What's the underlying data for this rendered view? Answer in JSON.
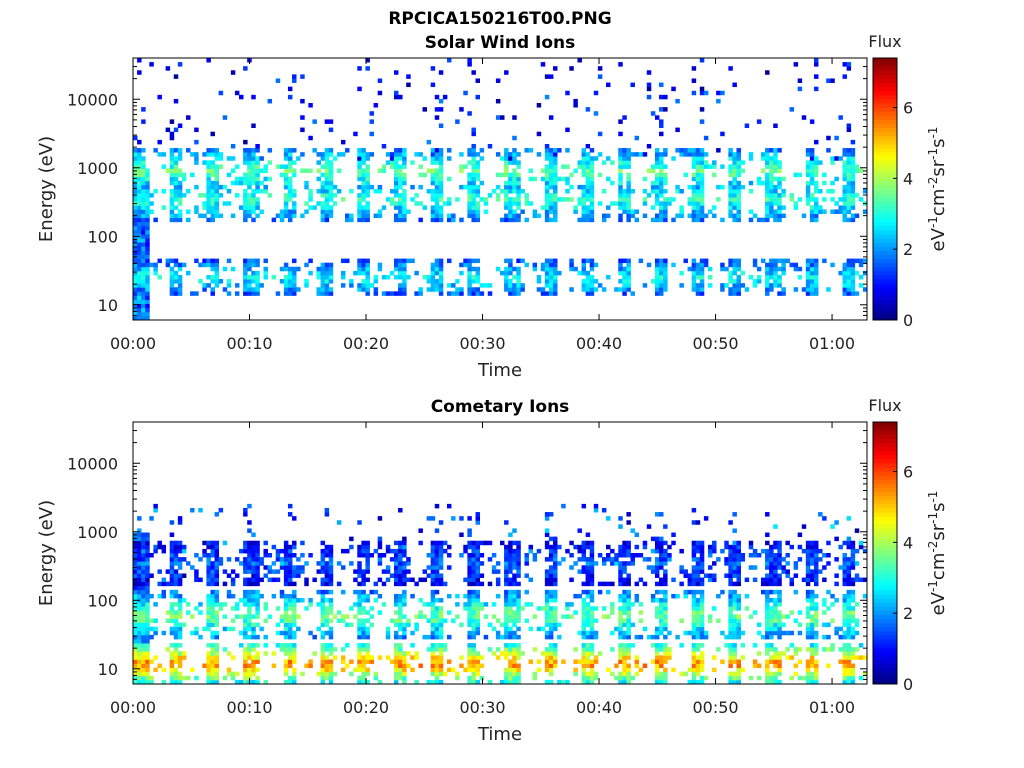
{
  "figure_title": "RPCICA150216T00.PNG",
  "chart_data": [
    {
      "type": "heatmap",
      "title": "Solar Wind Ions",
      "xlabel": "Time",
      "ylabel": "Energy (eV)",
      "y_scale": "log",
      "ylim": [
        6,
        40000
      ],
      "xlim_minutes": [
        0,
        63
      ],
      "x_ticks": [
        "00:00",
        "00:10",
        "00:20",
        "00:30",
        "00:40",
        "00:50",
        "01:00"
      ],
      "y_ticks": [
        "10",
        "100",
        "1000",
        "10000"
      ],
      "colorbar": {
        "title": "Flux",
        "label": "eV-1cm-2sr-1s-1",
        "range": [
          0,
          7.4
        ],
        "ticks": [
          "0",
          "2",
          "4",
          "6"
        ],
        "colormap": "jet"
      },
      "band_centers_eV": [
        25,
        350,
        900
      ],
      "band_levels": [
        2.8,
        3.1,
        3.4
      ],
      "sweep_period_minutes": 3.2
    },
    {
      "type": "heatmap",
      "title": "Cometary Ions",
      "xlabel": "Time",
      "ylabel": "Energy (eV)",
      "y_scale": "log",
      "ylim": [
        6,
        40000
      ],
      "xlim_minutes": [
        0,
        63
      ],
      "x_ticks": [
        "00:00",
        "00:10",
        "00:20",
        "00:30",
        "00:40",
        "00:50",
        "01:00"
      ],
      "y_ticks": [
        "10",
        "100",
        "1000",
        "10000"
      ],
      "colorbar": {
        "title": "Flux",
        "label": "eV-1cm-2sr-1s-1",
        "range": [
          0,
          7.4
        ],
        "ticks": [
          "0",
          "2",
          "4",
          "6"
        ],
        "colormap": "jet"
      },
      "band_centers_eV": [
        12,
        60,
        350
      ],
      "band_levels": [
        5.6,
        3.6,
        1.6
      ],
      "sweep_period_minutes": 3.2
    }
  ]
}
